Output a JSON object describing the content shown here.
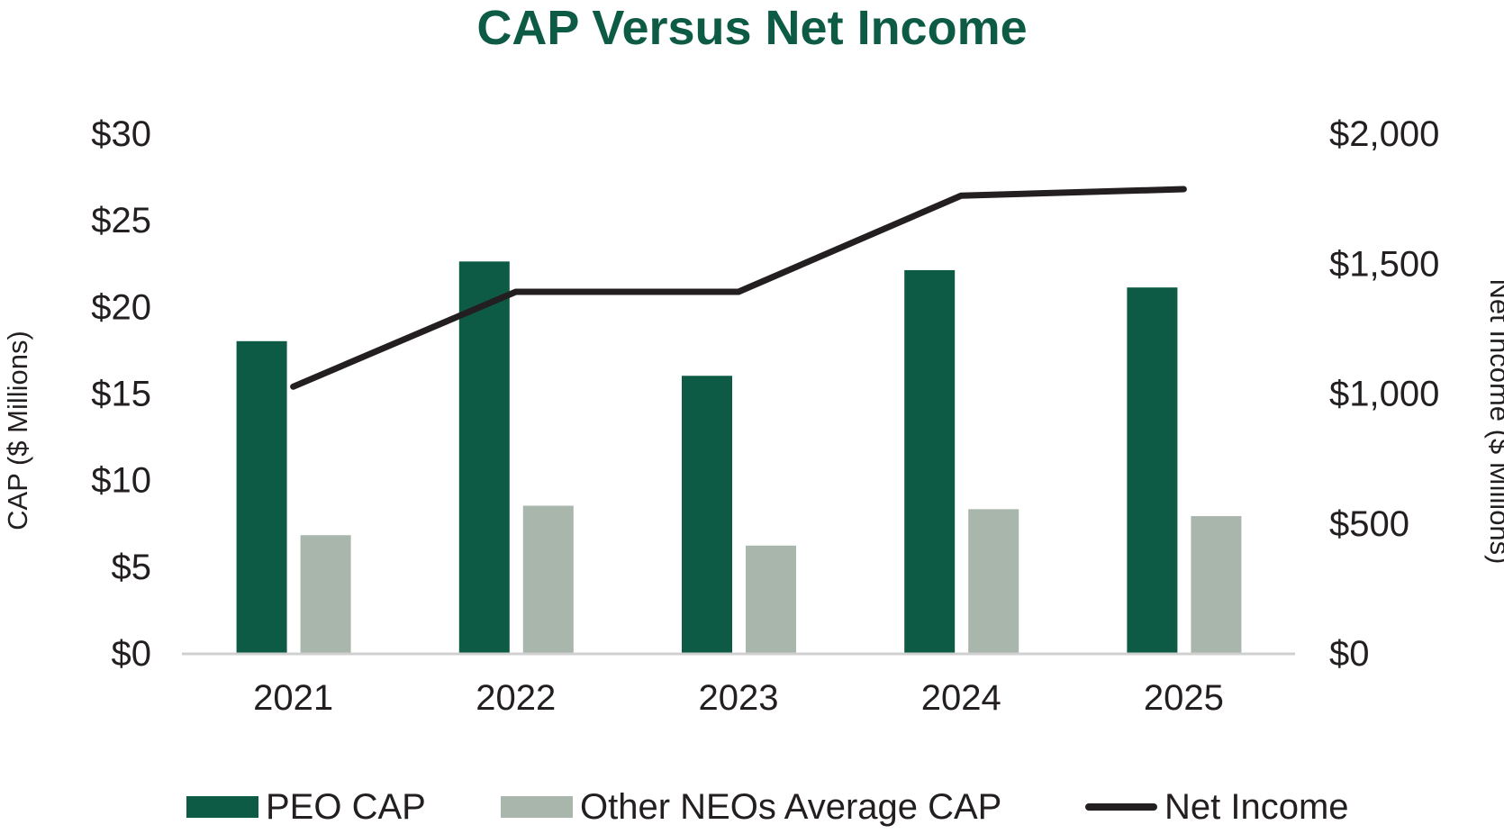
{
  "colors": {
    "peo_cap": "#0e5b45",
    "other_neos": "#a9b6ac",
    "net_income": "#231f20",
    "title": "#0e5b45",
    "baseline": "#d0d0d0"
  },
  "chart_data": {
    "type": "bar",
    "title": "CAP Versus Net Income",
    "categories": [
      "2021",
      "2022",
      "2023",
      "2024",
      "2025"
    ],
    "series": [
      {
        "name": "PEO CAP",
        "type": "bar",
        "axis": "left",
        "values": [
          18.0,
          22.6,
          16.0,
          22.1,
          21.1
        ]
      },
      {
        "name": "Other NEOs Average CAP",
        "type": "bar",
        "axis": "left",
        "values": [
          6.8,
          8.5,
          6.2,
          8.3,
          7.9
        ]
      },
      {
        "name": "Net Income",
        "type": "line",
        "axis": "right",
        "values": [
          1025,
          1390,
          1390,
          1760,
          1785
        ]
      }
    ],
    "y_left": {
      "label": "CAP ($ Millions)",
      "range": [
        0,
        30
      ],
      "ticks": [
        0,
        5,
        10,
        15,
        20,
        25,
        30
      ],
      "tick_labels": [
        "$0",
        "$5",
        "$10",
        "$15",
        "$20",
        "$25",
        "$30"
      ]
    },
    "y_right": {
      "label": "Net Income ($ Millions)",
      "range": [
        0,
        2000
      ],
      "ticks": [
        0,
        500,
        1000,
        1500,
        2000
      ],
      "tick_labels": [
        "$0",
        "$500",
        "$1,000",
        "$1,500",
        "$2,000"
      ]
    },
    "grid": false,
    "legend_position": "bottom"
  }
}
